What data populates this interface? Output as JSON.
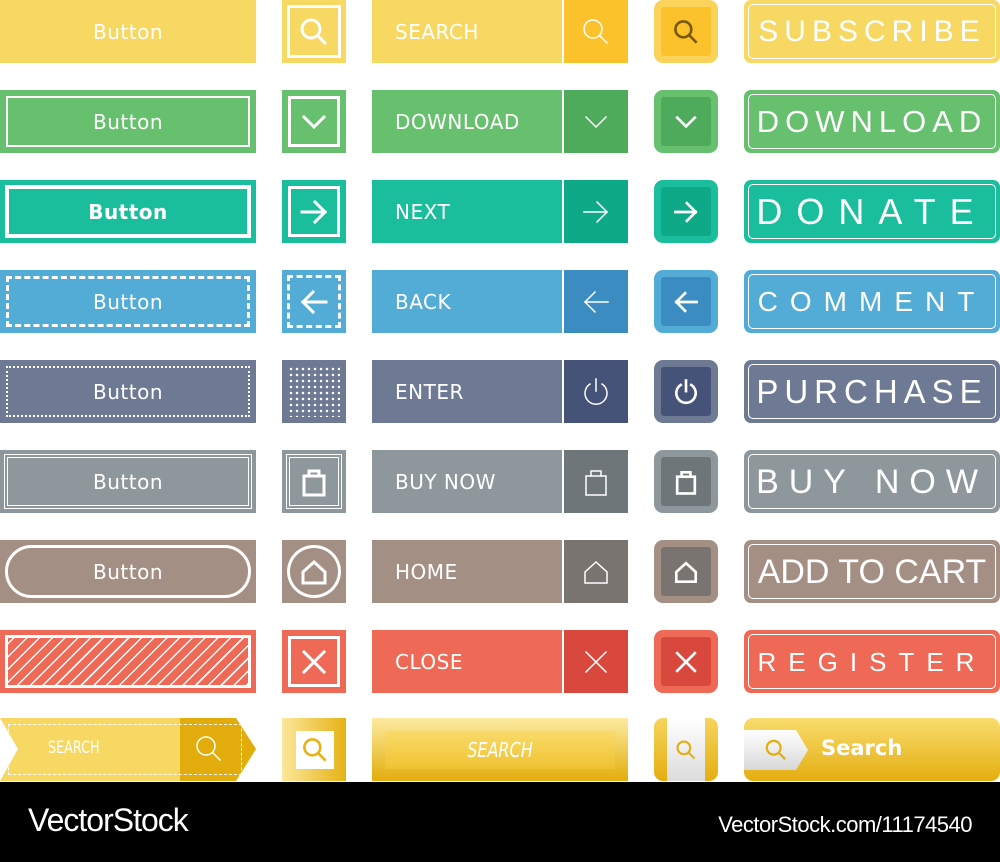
{
  "rows": [
    {
      "color": "#f7d862",
      "dark": "#fbc22c",
      "button": "Button",
      "label": "SEARCH",
      "icon": "search",
      "big": "SUBSCRIBE",
      "spacing": 6
    },
    {
      "color": "#66c06d",
      "dark": "#4eab5c",
      "button": "Button",
      "label": "DOWNLOAD",
      "icon": "chevron-down",
      "big": "DOWNLOAD",
      "spacing": 6
    },
    {
      "color": "#1bbe9c",
      "dark": "#0ea987",
      "button": "Button",
      "label": "NEXT",
      "icon": "arrow-right",
      "big": "DONATE",
      "spacing": 26
    },
    {
      "color": "#52acd6",
      "dark": "#3b8cc0",
      "button": "Button",
      "label": "BACK",
      "icon": "arrow-left",
      "big": "COMMENT",
      "spacing": 12
    },
    {
      "color": "#6e7a94",
      "dark": "#465378",
      "button": "Button",
      "label": "ENTER",
      "icon": "power",
      "big": "PURCHASE",
      "spacing": 6
    },
    {
      "color": "#8e979b",
      "dark": "#6f7679",
      "button": "Button",
      "label": "BUY NOW",
      "icon": "shopping-bag",
      "big": "BUY NOW",
      "spacing": 10
    },
    {
      "color": "#a38f84",
      "dark": "#7a7470",
      "button": "Button",
      "label": "HOME",
      "icon": "home",
      "big": "ADD TO CART",
      "spacing": 0
    },
    {
      "color": "#ee6a56",
      "dark": "#d9483d",
      "button": "",
      "label": "CLOSE",
      "icon": "close",
      "big": "REGISTER",
      "spacing": 12
    }
  ],
  "last_row": {
    "ribbon_label": "SEARCH",
    "bevel_label": "SEARCH",
    "pill_label": "Search",
    "color": "#f7d862",
    "dark": "#e2ad0c"
  },
  "footer": {
    "logo": "VectorStock",
    "url": "VectorStock.com/11174540"
  }
}
